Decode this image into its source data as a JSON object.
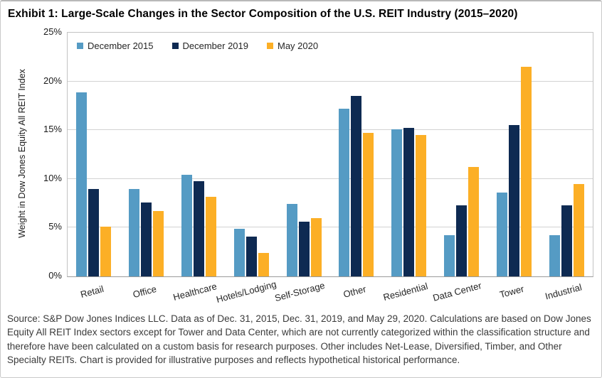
{
  "title": "Exhibit 1: Large-Scale Changes in the Sector Composition of the U.S. REIT Industry (2015–2020)",
  "source": "Source: S&P Dow Jones Indices LLC. Data as of Dec. 31, 2015, Dec. 31, 2019, and May 29, 2020. Calculations are based on Dow Jones Equity All REIT Index sectors except for Tower and Data Center, which are not currently categorized within the classification structure and therefore have been calculated on a custom basis for research purposes. Other includes Net-Lease, Diversified, Timber, and Other Specialty REITs. Chart is provided for illustrative purposes and reflects hypothetical historical performance.",
  "chart_data": {
    "type": "bar",
    "title": "Exhibit 1: Large-Scale Changes in the Sector Composition of the U.S. REIT Industry (2015–2020)",
    "xlabel": "",
    "ylabel": "Weight in Dow Jones Equity All REIT Index",
    "ylim": [
      0,
      25
    ],
    "yticks": [
      0,
      5,
      10,
      15,
      20,
      25
    ],
    "ytick_suffix": "%",
    "grid": "horizontal",
    "legend_position": "top-left-inside",
    "categories": [
      "Retail",
      "Office",
      "Healthcare",
      "Hotels/Lodging",
      "Self-Storage",
      "Other",
      "Residential",
      "Data Center",
      "Tower",
      "Industrial"
    ],
    "series": [
      {
        "name": "December 2015",
        "color": "#559BC4",
        "values": [
          18.9,
          9.0,
          10.4,
          4.9,
          7.4,
          17.2,
          15.1,
          4.2,
          8.6,
          4.2
        ]
      },
      {
        "name": "December 2019",
        "color": "#0E2A52",
        "values": [
          9.0,
          7.6,
          9.8,
          4.1,
          5.6,
          18.5,
          15.2,
          7.3,
          15.5,
          7.3
        ]
      },
      {
        "name": "May 2020",
        "color": "#FCAF26",
        "values": [
          5.1,
          6.7,
          8.2,
          2.4,
          6.0,
          14.7,
          14.5,
          11.2,
          21.5,
          9.5
        ]
      }
    ]
  }
}
